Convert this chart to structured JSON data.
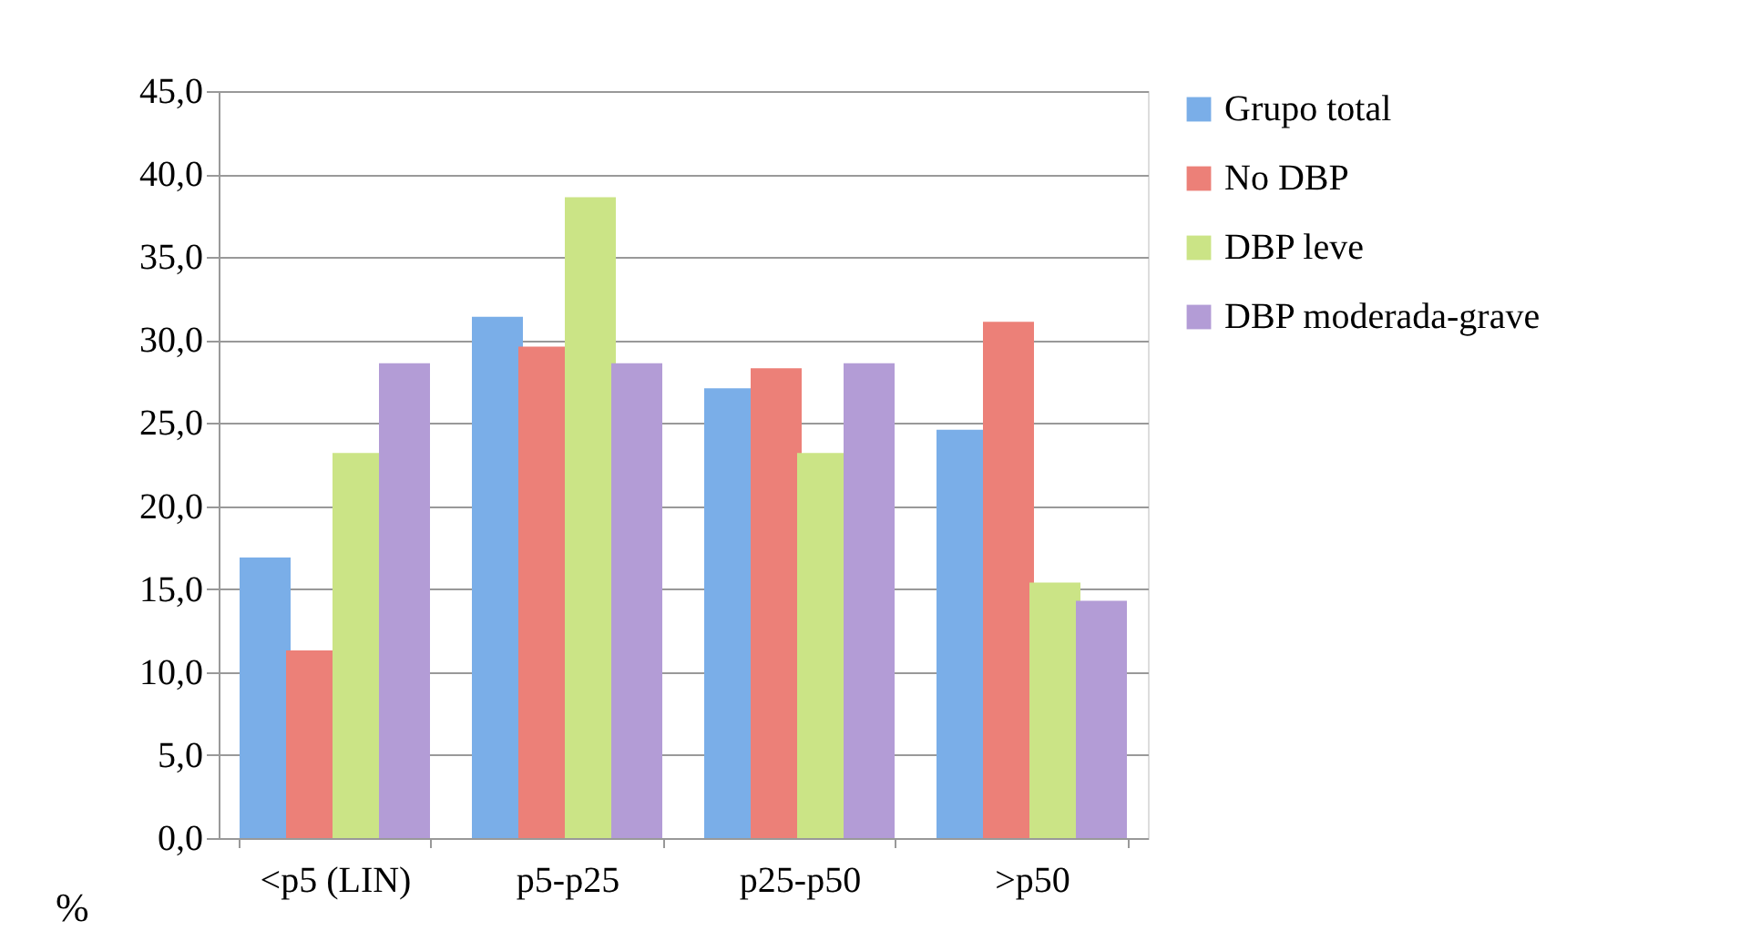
{
  "chart_data": {
    "type": "bar",
    "ylabel": "%",
    "categories": [
      "<p5 (LIN)",
      "p5-p25",
      "p25-p50",
      ">p50"
    ],
    "series": [
      {
        "name": "Grupo total",
        "color": "#7aaee8",
        "values": [
          16.9,
          31.4,
          27.1,
          24.6
        ]
      },
      {
        "name": "No DBP",
        "color": "#ec8078",
        "values": [
          11.3,
          29.6,
          28.3,
          31.1
        ]
      },
      {
        "name": "DBP leve",
        "color": "#cbe486",
        "values": [
          23.2,
          38.6,
          23.2,
          15.4
        ]
      },
      {
        "name": "DBP moderada-grave",
        "color": "#b39cd6",
        "values": [
          28.6,
          28.6,
          28.6,
          14.3
        ]
      }
    ],
    "ylim": [
      0,
      45
    ],
    "yticks": [
      {
        "value": 0,
        "label": "0,0"
      },
      {
        "value": 5,
        "label": "5,0"
      },
      {
        "value": 10,
        "label": "10,0"
      },
      {
        "value": 15,
        "label": "15,0"
      },
      {
        "value": 20,
        "label": "20,0"
      },
      {
        "value": 25,
        "label": "25,0"
      },
      {
        "value": 30,
        "label": "30,0"
      },
      {
        "value": 35,
        "label": "35,0"
      },
      {
        "value": 40,
        "label": "40,0"
      },
      {
        "value": 45,
        "label": "45,0"
      }
    ],
    "grid": "y",
    "legend": "right"
  }
}
